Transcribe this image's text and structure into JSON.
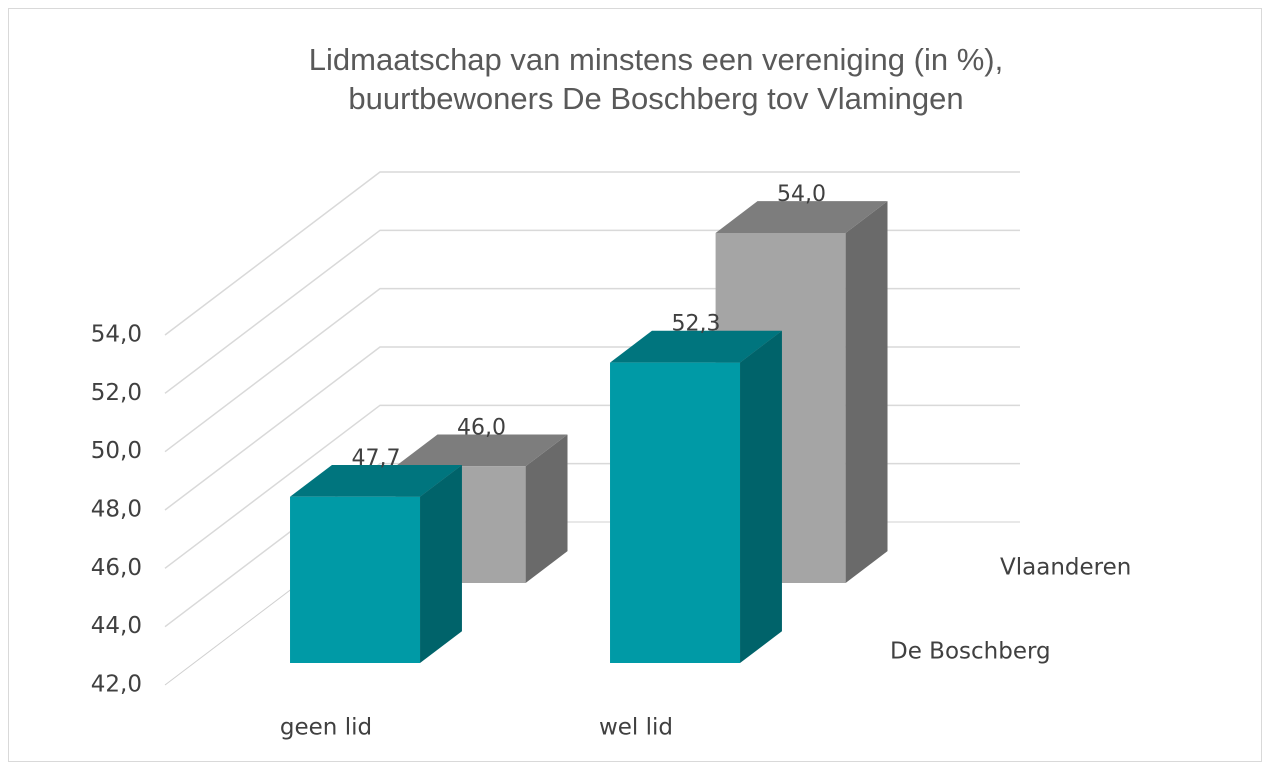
{
  "chart_data": {
    "type": "bar3d",
    "title": "Lidmaatschap van minstens een vereniging (in %), buurtbewoners De Boschberg tov Vlamingen",
    "categories": [
      "geen lid",
      "wel lid"
    ],
    "series": [
      {
        "name": "De Boschberg",
        "color": "#009aa6",
        "values": [
          47.7,
          52.3
        ],
        "value_labels": [
          "47,7",
          "52,3"
        ]
      },
      {
        "name": "Vlaanderen",
        "color": "#a5a5a5",
        "values": [
          46.0,
          54.0
        ],
        "value_labels": [
          "46,0",
          "54,0"
        ]
      }
    ],
    "ylim": [
      42,
      54
    ],
    "yticks": [
      {
        "value": 42,
        "label": "42,0"
      },
      {
        "value": 44,
        "label": "44,0"
      },
      {
        "value": 46,
        "label": "46,0"
      },
      {
        "value": 48,
        "label": "48,0"
      },
      {
        "value": 50,
        "label": "50,0"
      },
      {
        "value": 52,
        "label": "52,0"
      },
      {
        "value": 54,
        "label": "54,0"
      }
    ],
    "grid": true
  }
}
